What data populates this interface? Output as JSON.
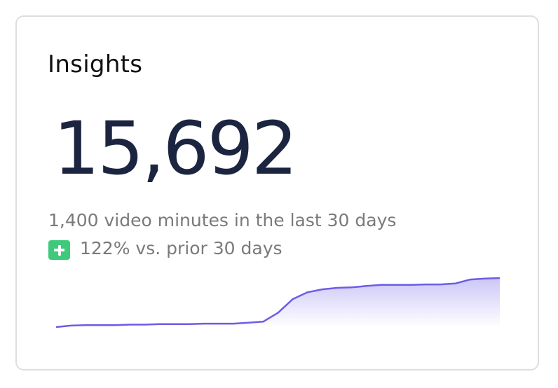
{
  "header": {
    "title": "Insights"
  },
  "metric": {
    "value": "15,692",
    "subtitle": "1,400 video minutes in the last 30 days",
    "change": "122% vs. prior 30 days"
  },
  "sparkline": {
    "type": "line",
    "color": "#6c5ce7",
    "ylim": [
      0,
      100
    ],
    "values": [
      0,
      3,
      4,
      4,
      4,
      5,
      5,
      6,
      6,
      6,
      7,
      7,
      7,
      9,
      11,
      29,
      57,
      71,
      77,
      80,
      81,
      84,
      86,
      86,
      86,
      87,
      87,
      89,
      97,
      99,
      100
    ]
  }
}
